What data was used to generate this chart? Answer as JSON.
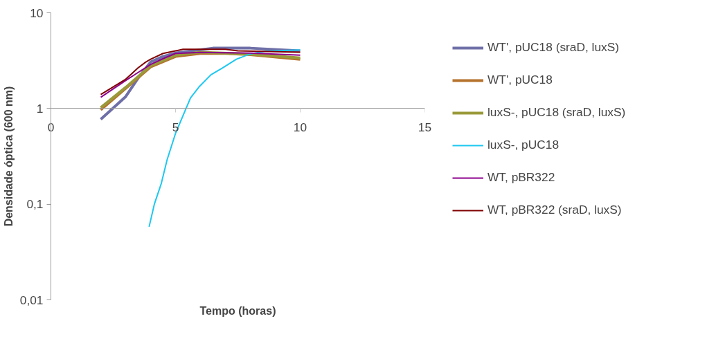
{
  "chart_data": {
    "type": "line",
    "xlabel": "Tempo (horas)",
    "ylabel": "Densidade óptica (600 nm)",
    "log": "y",
    "xlim": [
      0,
      15
    ],
    "xticks": [
      0,
      5,
      10,
      15
    ],
    "ylim": [
      0.01,
      10
    ],
    "yticks": [
      {
        "value": 0.01,
        "label": "0,01"
      },
      {
        "value": 0.1,
        "label": "0,1"
      },
      1,
      10
    ],
    "legend": "right",
    "marker": "none",
    "line_style": "solid",
    "series": [
      {
        "name": "WT', pUC18 (sraD, luxS)",
        "color": "#6f6fa8",
        "x": [
          2,
          3,
          3.5,
          4,
          4.5,
          5,
          6.5,
          8,
          10
        ],
        "values": [
          0.77,
          1.33,
          2.08,
          3.06,
          3.5,
          3.8,
          4.27,
          4.27,
          4.0
        ]
      },
      {
        "name": "WT', pUC18",
        "color": "#b5722e",
        "x": [
          2,
          3,
          4,
          5,
          6,
          7,
          8,
          10
        ],
        "values": [
          0.97,
          1.62,
          2.72,
          3.5,
          3.76,
          3.76,
          3.66,
          3.27
        ]
      },
      {
        "name": "luxS-, pUC18 (sraD, luxS)",
        "color": "#9a9a3a",
        "x": [
          2,
          3,
          4,
          5,
          6,
          8,
          10
        ],
        "values": [
          1.02,
          1.66,
          2.8,
          3.6,
          3.88,
          3.7,
          3.38
        ]
      },
      {
        "name": "luxS-, pUC18",
        "color": "#1ec8f0",
        "x": [
          3.94,
          4.15,
          4.43,
          4.66,
          5.0,
          5.6,
          5.96,
          6.42,
          6.89,
          7.44,
          8.0,
          8.64,
          10
        ],
        "values": [
          0.058,
          0.1,
          0.165,
          0.29,
          0.55,
          1.29,
          1.7,
          2.25,
          2.66,
          3.27,
          3.72,
          3.99,
          4.08
        ]
      },
      {
        "name": "WT, pBR322",
        "color": "#8b008b",
        "x": [
          2,
          3,
          3.5,
          4,
          4.5,
          5,
          6,
          8,
          10
        ],
        "values": [
          1.31,
          1.96,
          2.38,
          2.89,
          3.32,
          3.76,
          3.85,
          3.8,
          3.61
        ]
      },
      {
        "name": "WT, pBR322 (sraD, luxS)",
        "color": "#800000",
        "x": [
          2,
          3,
          3.2,
          3.5,
          3.8,
          4,
          4.5,
          5,
          5.3,
          6,
          7,
          7.5,
          10
        ],
        "values": [
          1.4,
          2.02,
          2.25,
          2.66,
          3.05,
          3.27,
          3.76,
          4.0,
          4.15,
          4.15,
          4.15,
          4.0,
          3.87
        ]
      }
    ]
  }
}
